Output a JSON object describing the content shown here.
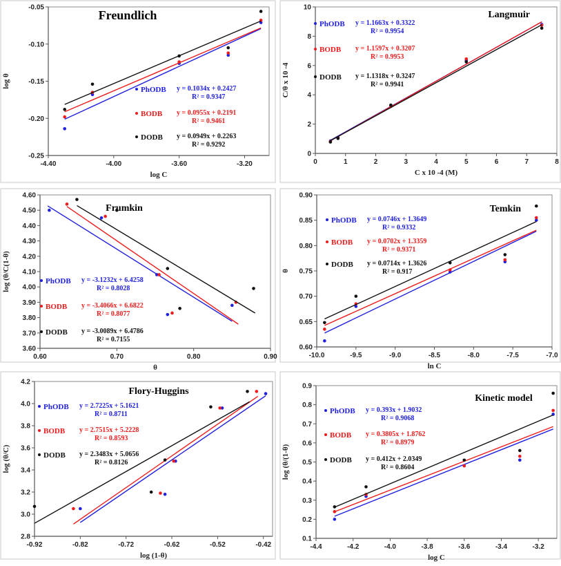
{
  "chart_data": [
    {
      "type": "scatter",
      "title": "Freundlich",
      "xlabel": "log C",
      "ylabel": "log θ",
      "xlim": [
        -4.4,
        -3.05
      ],
      "ylim": [
        -0.25,
        -0.05
      ],
      "xticks": [
        -4.4,
        -4.0,
        -3.6,
        -3.2
      ],
      "xtick_labels": [
        "-4.40",
        "-4.00",
        "-3.60",
        "-3.20"
      ],
      "yticks": [
        -0.25,
        -0.2,
        -0.15,
        -0.1,
        -0.05
      ],
      "ytick_labels": [
        "-0.25",
        "-0.20",
        "-0.15",
        "-0.10",
        "-0.05"
      ],
      "series": [
        {
          "name": "PhODB",
          "color": "#2020e0",
          "x": [
            -4.3,
            -4.13,
            -3.6,
            -3.3,
            -3.1
          ],
          "y": [
            -0.214,
            -0.168,
            -0.126,
            -0.115,
            -0.071
          ],
          "fit": [
            -4.3,
            -3.1
          ],
          "equation": "y = 0.1034x + 0.2427",
          "r2": "R² = 0.9347"
        },
        {
          "name": "BODB",
          "color": "#ee1c1c",
          "x": [
            -4.3,
            -4.13,
            -3.6,
            -3.3,
            -3.1
          ],
          "y": [
            -0.198,
            -0.165,
            -0.124,
            -0.112,
            -0.068
          ],
          "fit": [
            -4.3,
            -3.1
          ],
          "equation": "y = 0.0955x + 0.2191",
          "r2": "R² = 0.9461"
        },
        {
          "name": "DODB",
          "color": "#111111",
          "x": [
            -4.3,
            -4.13,
            -3.6,
            -3.3,
            -3.1
          ],
          "y": [
            -0.188,
            -0.154,
            -0.116,
            -0.105,
            -0.056
          ],
          "fit": [
            -4.3,
            -3.1
          ],
          "equation": "y = 0.0949x + 0.2263",
          "r2": "R² = 0.9292"
        }
      ]
    },
    {
      "type": "scatter",
      "title": "Langmuir",
      "xlabel": "C  x 10 -4 (M)",
      "ylabel": "C/θ x 10 -4",
      "xlim": [
        0,
        8
      ],
      "ylim": [
        0,
        10
      ],
      "xticks": [
        0,
        1,
        2,
        3,
        4,
        5,
        6,
        7,
        8
      ],
      "xtick_labels": [
        "0",
        "1",
        "2",
        "3",
        "4",
        "5",
        "6",
        "7",
        "8"
      ],
      "yticks": [
        0,
        2,
        4,
        6,
        8,
        10
      ],
      "ytick_labels": [
        "0",
        "2",
        "4",
        "6",
        "8",
        "10"
      ],
      "series": [
        {
          "name": "PhODB",
          "color": "#2020e0",
          "x": [
            0.5,
            0.75,
            2.5,
            5,
            7.5
          ],
          "y": [
            0.85,
            1.1,
            3.25,
            6.35,
            8.8
          ],
          "fit": [
            0.5,
            7.5
          ],
          "equation": "y = 1.1663x + 0.3322",
          "r2": "R² = 0.9954"
        },
        {
          "name": "BODB",
          "color": "#ee1c1c",
          "x": [
            0.5,
            0.75,
            2.5,
            5,
            7.5
          ],
          "y": [
            0.82,
            1.05,
            3.2,
            6.45,
            8.75
          ],
          "fit": [
            0.5,
            7.5
          ],
          "equation": "y = 1.1597x + 0.3207",
          "r2": "R² = 0.9953"
        },
        {
          "name": "DODB",
          "color": "#111111",
          "x": [
            0.5,
            0.75,
            2.5,
            5,
            7.5
          ],
          "y": [
            0.78,
            1.02,
            3.3,
            6.25,
            8.55
          ],
          "fit": [
            0.5,
            7.5
          ],
          "equation": "y = 1.1318x + 0.3247",
          "r2": "R² = 0.9941"
        }
      ]
    },
    {
      "type": "scatter",
      "title": "Frumkin",
      "xlabel": "θ",
      "ylabel": "log (θ/C(1-θ)",
      "xlim": [
        0.6,
        0.9
      ],
      "ylim": [
        3.6,
        4.6
      ],
      "xticks": [
        0.6,
        0.7,
        0.8,
        0.9
      ],
      "xtick_labels": [
        "0.60",
        "0.70",
        "0.80",
        "0.90"
      ],
      "yticks": [
        3.6,
        3.7,
        3.8,
        3.9,
        4.0,
        4.1,
        4.2,
        4.3,
        4.4,
        4.5,
        4.6
      ],
      "ytick_labels": [
        "3.60",
        "3.70",
        "3.80",
        "3.90",
        "4.00",
        "4.10",
        "4.20",
        "4.30",
        "4.40",
        "4.50",
        "4.60"
      ],
      "series": [
        {
          "name": "PhODB",
          "color": "#2020e0",
          "x": [
            0.612,
            0.68,
            0.752,
            0.766,
            0.85
          ],
          "y": [
            4.5,
            4.45,
            4.08,
            3.82,
            3.88
          ],
          "fit": [
            0.61,
            0.85
          ],
          "equation": "y = -3.1232x + 6.4258",
          "r2": "R² = 0.8028"
        },
        {
          "name": "BODB",
          "color": "#ee1c1c",
          "x": [
            0.635,
            0.685,
            0.755,
            0.772,
            0.855
          ],
          "y": [
            4.54,
            4.46,
            4.08,
            3.83,
            3.9
          ],
          "fit": [
            0.635,
            0.858
          ],
          "equation": "y = -3.4066x + 6.6822",
          "r2": "R² = 0.8077"
        },
        {
          "name": "DODB",
          "color": "#111111",
          "x": [
            0.648,
            0.7,
            0.766,
            0.782,
            0.878
          ],
          "y": [
            4.57,
            4.5,
            4.12,
            3.86,
            3.99
          ],
          "fit": [
            0.648,
            0.88
          ],
          "equation": "y = -3.0089x + 6.4786",
          "r2": "R² = 0.7155"
        }
      ]
    },
    {
      "type": "scatter",
      "title": "Temkin",
      "xlabel": "ln C",
      "ylabel": "θ",
      "xlim": [
        -10.0,
        -7.0
      ],
      "ylim": [
        0.6,
        0.9
      ],
      "xticks": [
        -10,
        -9.5,
        -9,
        -8.5,
        -8,
        -7.5,
        -7
      ],
      "xtick_labels": [
        "-10.0",
        "-9.5",
        "-9.0",
        "-8.5",
        "-8.0",
        "-7.5",
        "-7.0"
      ],
      "yticks": [
        0.6,
        0.65,
        0.7,
        0.75,
        0.8,
        0.85,
        0.9
      ],
      "ytick_labels": [
        "0.60",
        "0.65",
        "0.70",
        "0.75",
        "0.80",
        "0.85",
        "0.90"
      ],
      "series": [
        {
          "name": "PhODB",
          "color": "#2020e0",
          "x": [
            -9.9,
            -9.5,
            -8.3,
            -7.6,
            -7.2
          ],
          "y": [
            0.612,
            0.68,
            0.748,
            0.768,
            0.85
          ],
          "fit": [
            -9.9,
            -7.2
          ],
          "equation": "y = 0.0746x + 1.3649",
          "r2": "R² = 0.9332"
        },
        {
          "name": "BODB",
          "color": "#ee1c1c",
          "x": [
            -9.9,
            -9.5,
            -8.3,
            -7.6,
            -7.2
          ],
          "y": [
            0.635,
            0.685,
            0.752,
            0.772,
            0.855
          ],
          "fit": [
            -9.9,
            -7.2
          ],
          "equation": "y = 0.0702x + 1.3359",
          "r2": "R² = 0.9371"
        },
        {
          "name": "DODB",
          "color": "#111111",
          "x": [
            -9.9,
            -9.5,
            -8.3,
            -7.6,
            -7.2
          ],
          "y": [
            0.648,
            0.7,
            0.766,
            0.782,
            0.878
          ],
          "fit": [
            -9.9,
            -7.2
          ],
          "equation": "y = 0.0714x + 1.3626",
          "r2": "R² = 0.917"
        }
      ]
    },
    {
      "type": "scatter",
      "title": "Flory-Huggins",
      "xlabel": "log (1-θ)",
      "ylabel": "log (θ/C)",
      "xlim": [
        -0.92,
        -0.4
      ],
      "ylim": [
        2.8,
        4.2
      ],
      "xticks": [
        -0.92,
        -0.82,
        -0.72,
        -0.62,
        -0.52,
        -0.42
      ],
      "xtick_labels": [
        "-0.92",
        "-0.82",
        "-0.72",
        "-0.62",
        "-0.52",
        "-0.42"
      ],
      "yticks": [
        2.8,
        3.0,
        3.2,
        3.4,
        3.6,
        3.8,
        4.0,
        4.2
      ],
      "ytick_labels": [
        "2.8",
        "3.0",
        "3.2",
        "3.4",
        "3.6",
        "3.8",
        "4.0",
        "4.2"
      ],
      "series": [
        {
          "name": "PhODB",
          "color": "#2020e0",
          "x": [
            -0.82,
            -0.635,
            -0.612,
            -0.51,
            -0.415
          ],
          "y": [
            3.05,
            3.18,
            3.48,
            3.96,
            4.09
          ],
          "fit": [
            -0.82,
            -0.415
          ],
          "equation": "y = 2.7225x + 5.1621",
          "r2": "R² = 0.8711"
        },
        {
          "name": "BODB",
          "color": "#ee1c1c",
          "x": [
            -0.835,
            -0.645,
            -0.616,
            -0.515,
            -0.435
          ],
          "y": [
            3.05,
            3.19,
            3.48,
            3.96,
            4.11
          ],
          "fit": [
            -0.835,
            -0.432
          ],
          "equation": "y = 2.7515x + 5.2228",
          "r2": "R² = 0.8593"
        },
        {
          "name": "DODB",
          "color": "#111111",
          "x": [
            -0.92,
            -0.665,
            -0.635,
            -0.535,
            -0.455
          ],
          "y": [
            3.07,
            3.2,
            3.49,
            3.97,
            4.11
          ],
          "fit": [
            -0.92,
            -0.45
          ],
          "equation": "y = 2.3483x + 5.0656",
          "r2": "R² = 0.8126"
        }
      ]
    },
    {
      "type": "scatter",
      "title": "Kinetic model",
      "xlabel": "log C",
      "ylabel": "log (θ/(1-θ)",
      "xlim": [
        -4.4,
        -3.1
      ],
      "ylim": [
        0.1,
        0.9
      ],
      "xticks": [
        -4.4,
        -4.2,
        -4.0,
        -3.8,
        -3.6,
        -3.4,
        -3.2
      ],
      "xtick_labels": [
        "-4.4",
        "-4.2",
        "-4.0",
        "-3.8",
        "-3.6",
        "-3.4",
        "-3.2"
      ],
      "yticks": [
        0.1,
        0.2,
        0.3,
        0.4,
        0.5,
        0.6,
        0.7,
        0.8,
        0.9
      ],
      "ytick_labels": [
        "0.1",
        "0.2",
        "0.3",
        "0.4",
        "0.5",
        "0.6",
        "0.7",
        "0.8",
        "0.9"
      ],
      "series": [
        {
          "name": "PhODB",
          "color": "#2020e0",
          "x": [
            -4.3,
            -4.13,
            -3.6,
            -3.3,
            -3.12
          ],
          "y": [
            0.2,
            0.32,
            0.48,
            0.51,
            0.75
          ],
          "fit": [
            -4.3,
            -3.12
          ],
          "equation": "y = 0.393x + 1.9032",
          "r2": "R² = 0.9068"
        },
        {
          "name": "BODB",
          "color": "#ee1c1c",
          "x": [
            -4.3,
            -4.13,
            -3.6,
            -3.3,
            -3.12
          ],
          "y": [
            0.24,
            0.33,
            0.48,
            0.53,
            0.77
          ],
          "fit": [
            -4.3,
            -3.12
          ],
          "equation": "y = 0.3805x + 1.8762",
          "r2": "R² = 0.8979"
        },
        {
          "name": "DODB",
          "color": "#111111",
          "x": [
            -4.3,
            -4.13,
            -3.6,
            -3.3,
            -3.12
          ],
          "y": [
            0.265,
            0.37,
            0.51,
            0.56,
            0.86
          ],
          "fit": [
            -4.3,
            -3.12
          ],
          "equation": "y = 0.412x + 2.0349",
          "r2": "R² = 0.8604"
        }
      ]
    }
  ]
}
